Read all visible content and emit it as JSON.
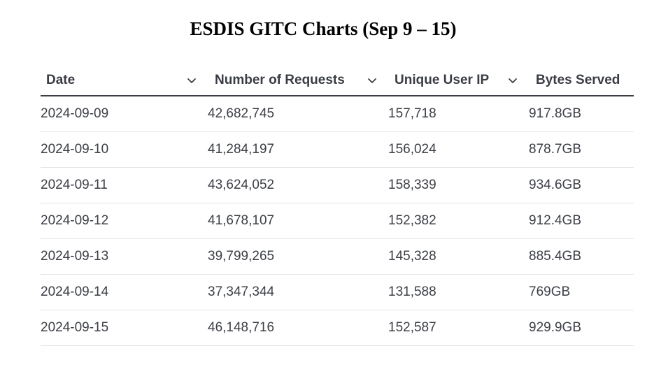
{
  "title": "ESDIS GITC Charts (Sep 9 – 15)",
  "chart_data": {
    "type": "table",
    "title": "ESDIS GITC Charts (Sep 9 – 15)",
    "columns": [
      "Date",
      "Number of Requests",
      "Unique User IP",
      "Bytes Served"
    ],
    "rows": [
      [
        "2024-09-09",
        "42,682,745",
        "157,718",
        "917.8GB"
      ],
      [
        "2024-09-10",
        "41,284,197",
        "156,024",
        "878.7GB"
      ],
      [
        "2024-09-11",
        "43,624,052",
        "158,339",
        "934.6GB"
      ],
      [
        "2024-09-12",
        "41,678,107",
        "152,382",
        "912.4GB"
      ],
      [
        "2024-09-13",
        "39,799,265",
        "145,328",
        "885.4GB"
      ],
      [
        "2024-09-14",
        "37,347,344",
        "131,588",
        "769GB"
      ],
      [
        "2024-09-15",
        "46,148,716",
        "152,587",
        "929.9GB"
      ]
    ],
    "sort_indicator_icon": "chevron-down-icon"
  }
}
